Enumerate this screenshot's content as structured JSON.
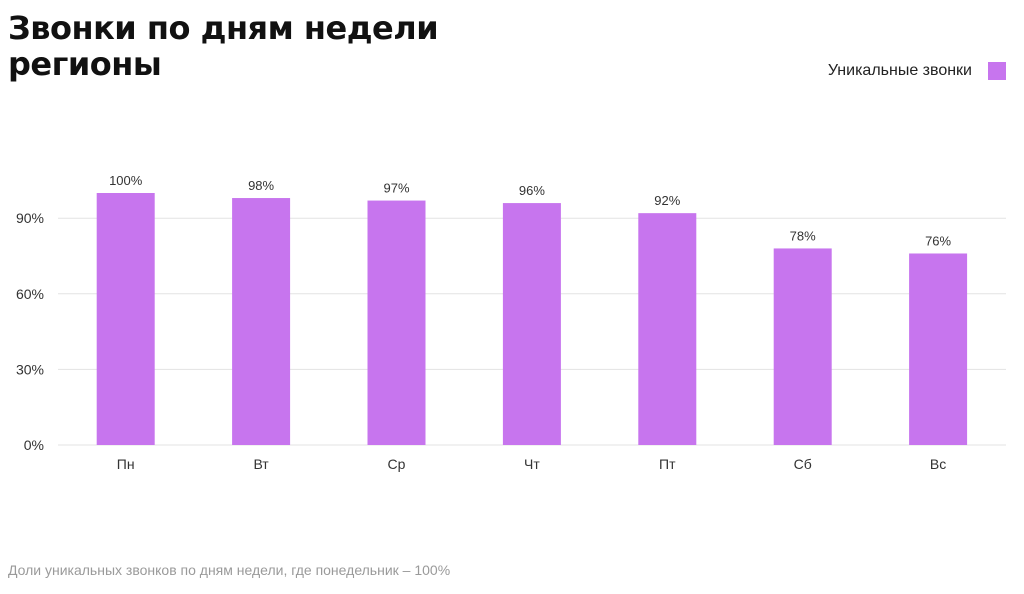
{
  "title_line1": "Звонки по дням недели",
  "title_line2": "регионы",
  "footnote": "Доли уникальных звонков по дням недели, где понедельник – 100%",
  "colors": {
    "bar": "#c775ee",
    "grid": "#e3e3e3",
    "text": "#333333"
  },
  "chart_data": {
    "type": "bar",
    "categories": [
      "Пн",
      "Вт",
      "Ср",
      "Чт",
      "Пт",
      "Сб",
      "Вс"
    ],
    "series": [
      {
        "name": "Уникальные звонки",
        "values": [
          100,
          98,
          97,
          96,
          92,
          78,
          76
        ],
        "labels": [
          "100%",
          "98%",
          "97%",
          "96%",
          "92%",
          "78%",
          "76%"
        ]
      }
    ],
    "yticks": [
      0,
      30,
      60,
      90
    ],
    "ytick_labels": [
      "0%",
      "30%",
      "60%",
      "90%"
    ],
    "ylim": [
      0,
      100
    ],
    "grid": true,
    "legend_position": "top-right"
  }
}
